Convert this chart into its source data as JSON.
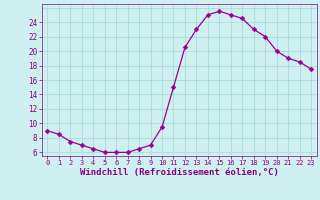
{
  "x": [
    0,
    1,
    2,
    3,
    4,
    5,
    6,
    7,
    8,
    9,
    10,
    11,
    12,
    13,
    14,
    15,
    16,
    17,
    18,
    19,
    20,
    21,
    22,
    23
  ],
  "y": [
    9.0,
    8.5,
    7.5,
    7.0,
    6.5,
    6.0,
    6.0,
    6.0,
    6.5,
    7.0,
    9.5,
    15.0,
    20.5,
    23.0,
    25.0,
    25.5,
    25.0,
    24.5,
    23.0,
    22.0,
    20.0,
    19.0,
    18.5,
    17.5
  ],
  "line_color": "#990099",
  "marker": "D",
  "marker_size": 2.5,
  "bg_color": "#cff0f0",
  "grid_color": "#aadada",
  "xlabel": "Windchill (Refroidissement éolien,°C)",
  "xlabel_color": "#880088",
  "tick_color": "#880088",
  "ylim": [
    5.5,
    26.5
  ],
  "xlim": [
    -0.5,
    23.5
  ],
  "yticks": [
    6,
    8,
    10,
    12,
    14,
    16,
    18,
    20,
    22,
    24
  ],
  "xticks": [
    0,
    1,
    2,
    3,
    4,
    5,
    6,
    7,
    8,
    9,
    10,
    11,
    12,
    13,
    14,
    15,
    16,
    17,
    18,
    19,
    20,
    21,
    22,
    23
  ],
  "xlabel_fontsize": 6.5,
  "tick_fontsize_x": 5.0,
  "tick_fontsize_y": 5.5
}
